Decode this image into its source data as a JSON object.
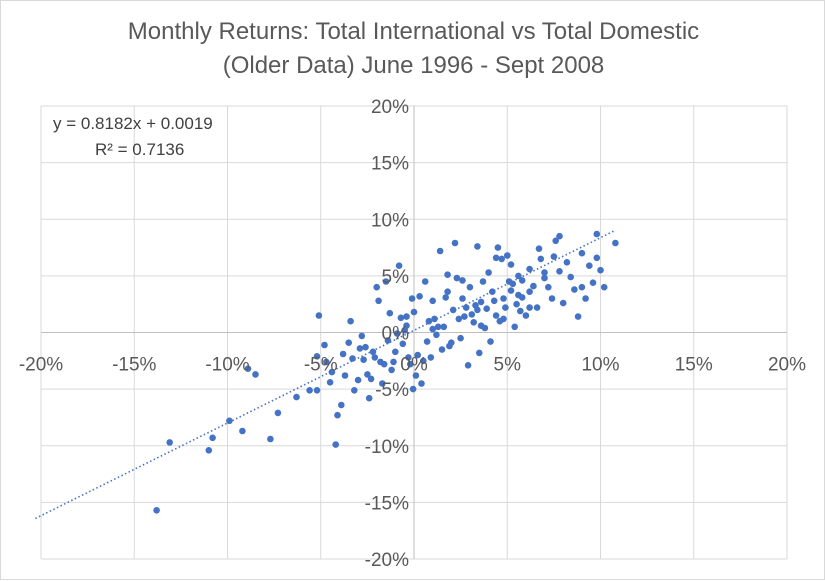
{
  "chart_data": {
    "type": "scatter",
    "title": "Monthly Returns: Total International vs Total Domestic",
    "subtitle": "(Older Data) June 1996 - Sept 2008",
    "xlim": [
      -0.2,
      0.2
    ],
    "ylim": [
      -0.2,
      0.2
    ],
    "x_ticks": [
      -0.2,
      -0.15,
      -0.1,
      -0.05,
      0.0,
      0.05,
      0.1,
      0.15,
      0.2
    ],
    "y_ticks": [
      -0.2,
      -0.15,
      -0.1,
      -0.05,
      0.0,
      0.05,
      0.1,
      0.15,
      0.2
    ],
    "x_tick_labels": [
      "-20%",
      "-15%",
      "-10%",
      "-5%",
      "0%",
      "5%",
      "10%",
      "15%",
      "20%"
    ],
    "y_tick_labels": [
      "-20%",
      "-15%",
      "-10%",
      "-5%",
      "0%",
      "5%",
      "10%",
      "15%",
      "20%"
    ],
    "grid": true,
    "point_color": "#4472c4",
    "trendline": {
      "slope": 0.8182,
      "intercept": 0.0019,
      "x_range": [
        -0.203,
        0.108
      ],
      "style": "dotted",
      "color": "#4472c4"
    },
    "annotations": {
      "equation": "y = 0.8182x + 0.0019",
      "r_squared": "R² = 0.7136"
    },
    "points": [
      [
        -0.138,
        -0.157
      ],
      [
        -0.131,
        -0.097
      ],
      [
        -0.11,
        -0.104
      ],
      [
        -0.108,
        -0.093
      ],
      [
        -0.099,
        -0.078
      ],
      [
        -0.092,
        -0.087
      ],
      [
        -0.085,
        -0.037
      ],
      [
        -0.089,
        -0.032
      ],
      [
        -0.077,
        -0.094
      ],
      [
        -0.073,
        -0.071
      ],
      [
        -0.063,
        -0.057
      ],
      [
        -0.056,
        -0.051
      ],
      [
        -0.052,
        -0.051
      ],
      [
        -0.051,
        0.015
      ],
      [
        -0.052,
        -0.021
      ],
      [
        -0.048,
        -0.011
      ],
      [
        -0.047,
        -0.026
      ],
      [
        -0.045,
        -0.044
      ],
      [
        -0.044,
        -0.035
      ],
      [
        -0.042,
        -0.099
      ],
      [
        -0.041,
        -0.073
      ],
      [
        -0.039,
        -0.064
      ],
      [
        -0.038,
        -0.019
      ],
      [
        -0.037,
        -0.038
      ],
      [
        -0.035,
        -0.009
      ],
      [
        -0.034,
        0.01
      ],
      [
        -0.033,
        -0.023
      ],
      [
        -0.032,
        -0.051
      ],
      [
        -0.03,
        -0.042
      ],
      [
        -0.029,
        -0.014
      ],
      [
        -0.028,
        -0.003
      ],
      [
        -0.027,
        -0.024
      ],
      [
        -0.026,
        -0.013
      ],
      [
        -0.025,
        -0.037
      ],
      [
        -0.024,
        -0.058
      ],
      [
        -0.023,
        -0.041
      ],
      [
        -0.022,
        -0.017
      ],
      [
        -0.021,
        -0.022
      ],
      [
        -0.02,
        0.04
      ],
      [
        -0.019,
        0.028
      ],
      [
        -0.018,
        -0.026
      ],
      [
        -0.017,
        -0.045
      ],
      [
        -0.016,
        -0.028
      ],
      [
        -0.015,
        0.045
      ],
      [
        -0.014,
        -0.007
      ],
      [
        -0.013,
        0.017
      ],
      [
        -0.012,
        -0.033
      ],
      [
        -0.011,
        -0.026
      ],
      [
        -0.01,
        -0.017
      ],
      [
        -0.009,
        -0.001
      ],
      [
        -0.008,
        0.059
      ],
      [
        -0.007,
        0.013
      ],
      [
        -0.006,
        -0.01
      ],
      [
        -0.005,
        0.002
      ],
      [
        -0.004,
        0.014
      ],
      [
        -0.003,
        -0.022
      ],
      [
        -0.002,
        -0.028
      ],
      [
        -0.001,
        0.03
      ],
      [
        -0.0005,
        -0.05
      ],
      [
        0.0,
        0.018
      ],
      [
        0.001,
        -0.038
      ],
      [
        0.002,
        -0.02
      ],
      [
        0.003,
        0.032
      ],
      [
        0.004,
        -0.045
      ],
      [
        0.005,
        -0.025
      ],
      [
        0.006,
        0.045
      ],
      [
        0.007,
        -0.008
      ],
      [
        0.008,
        0.01
      ],
      [
        0.009,
        -0.022
      ],
      [
        0.01,
        0.003
      ],
      [
        0.011,
        0.012
      ],
      [
        0.012,
        -0.002
      ],
      [
        0.013,
        0.005
      ],
      [
        0.014,
        0.072
      ],
      [
        0.015,
        -0.015
      ],
      [
        0.016,
        0.005
      ],
      [
        0.017,
        0.031
      ],
      [
        0.018,
        0.051
      ],
      [
        0.019,
        -0.012
      ],
      [
        0.02,
        -0.009
      ],
      [
        0.021,
        0.02
      ],
      [
        0.022,
        0.079
      ],
      [
        0.023,
        0.048
      ],
      [
        0.024,
        0.012
      ],
      [
        0.025,
        -0.005
      ],
      [
        0.026,
        0.03
      ],
      [
        0.027,
        0.014
      ],
      [
        0.028,
        0.022
      ],
      [
        0.029,
        -0.029
      ],
      [
        0.03,
        0.04
      ],
      [
        0.031,
        0.016
      ],
      [
        0.032,
        0.009
      ],
      [
        0.033,
        0.024
      ],
      [
        0.034,
        0.02
      ],
      [
        0.035,
        -0.018
      ],
      [
        0.036,
        0.027
      ],
      [
        0.037,
        0.045
      ],
      [
        0.038,
        0.004
      ],
      [
        0.039,
        0.021
      ],
      [
        0.04,
        0.053
      ],
      [
        0.041,
        -0.008
      ],
      [
        0.042,
        0.036
      ],
      [
        0.043,
        0.028
      ],
      [
        0.044,
        0.015
      ],
      [
        0.045,
        0.075
      ],
      [
        0.046,
        0.01
      ],
      [
        0.047,
        0.065
      ],
      [
        0.048,
        0.03
      ],
      [
        0.049,
        0.022
      ],
      [
        0.05,
        0.068
      ],
      [
        0.051,
        0.045
      ],
      [
        0.052,
        0.037
      ],
      [
        0.053,
        0.043
      ],
      [
        0.054,
        0.005
      ],
      [
        0.055,
        0.025
      ],
      [
        0.056,
        0.033
      ],
      [
        0.057,
        0.019
      ],
      [
        0.058,
        0.046
      ],
      [
        0.06,
        0.015
      ],
      [
        0.062,
        0.056
      ],
      [
        0.064,
        0.041
      ],
      [
        0.066,
        0.022
      ],
      [
        0.068,
        0.065
      ],
      [
        0.07,
        0.053
      ],
      [
        0.072,
        0.04
      ],
      [
        0.074,
        0.03
      ],
      [
        0.076,
        0.081
      ],
      [
        0.078,
        0.054
      ],
      [
        0.08,
        0.026
      ],
      [
        0.082,
        0.062
      ],
      [
        0.084,
        0.049
      ],
      [
        0.086,
        0.038
      ],
      [
        0.088,
        0.014
      ],
      [
        0.09,
        0.07
      ],
      [
        0.092,
        0.03
      ],
      [
        0.094,
        0.059
      ],
      [
        0.096,
        0.044
      ],
      [
        0.098,
        0.066
      ],
      [
        0.1,
        0.055
      ],
      [
        0.102,
        0.04
      ],
      [
        0.048,
        0.012
      ],
      [
        0.052,
        0.06
      ],
      [
        0.058,
        0.031
      ],
      [
        0.062,
        0.022
      ],
      [
        0.067,
        0.074
      ],
      [
        0.07,
        0.048
      ],
      [
        0.075,
        0.067
      ],
      [
        0.078,
        0.085
      ],
      [
        0.09,
        0.04
      ],
      [
        0.098,
        0.087
      ],
      [
        0.108,
        0.079
      ],
      [
        0.062,
        0.036
      ],
      [
        0.056,
        0.05
      ],
      [
        0.044,
        0.066
      ],
      [
        0.034,
        0.076
      ],
      [
        0.026,
        0.046
      ],
      [
        0.018,
        0.036
      ],
      [
        0.01,
        0.028
      ],
      [
        -0.004,
        0.006
      ],
      [
        0.036,
        0.006
      ]
    ]
  }
}
